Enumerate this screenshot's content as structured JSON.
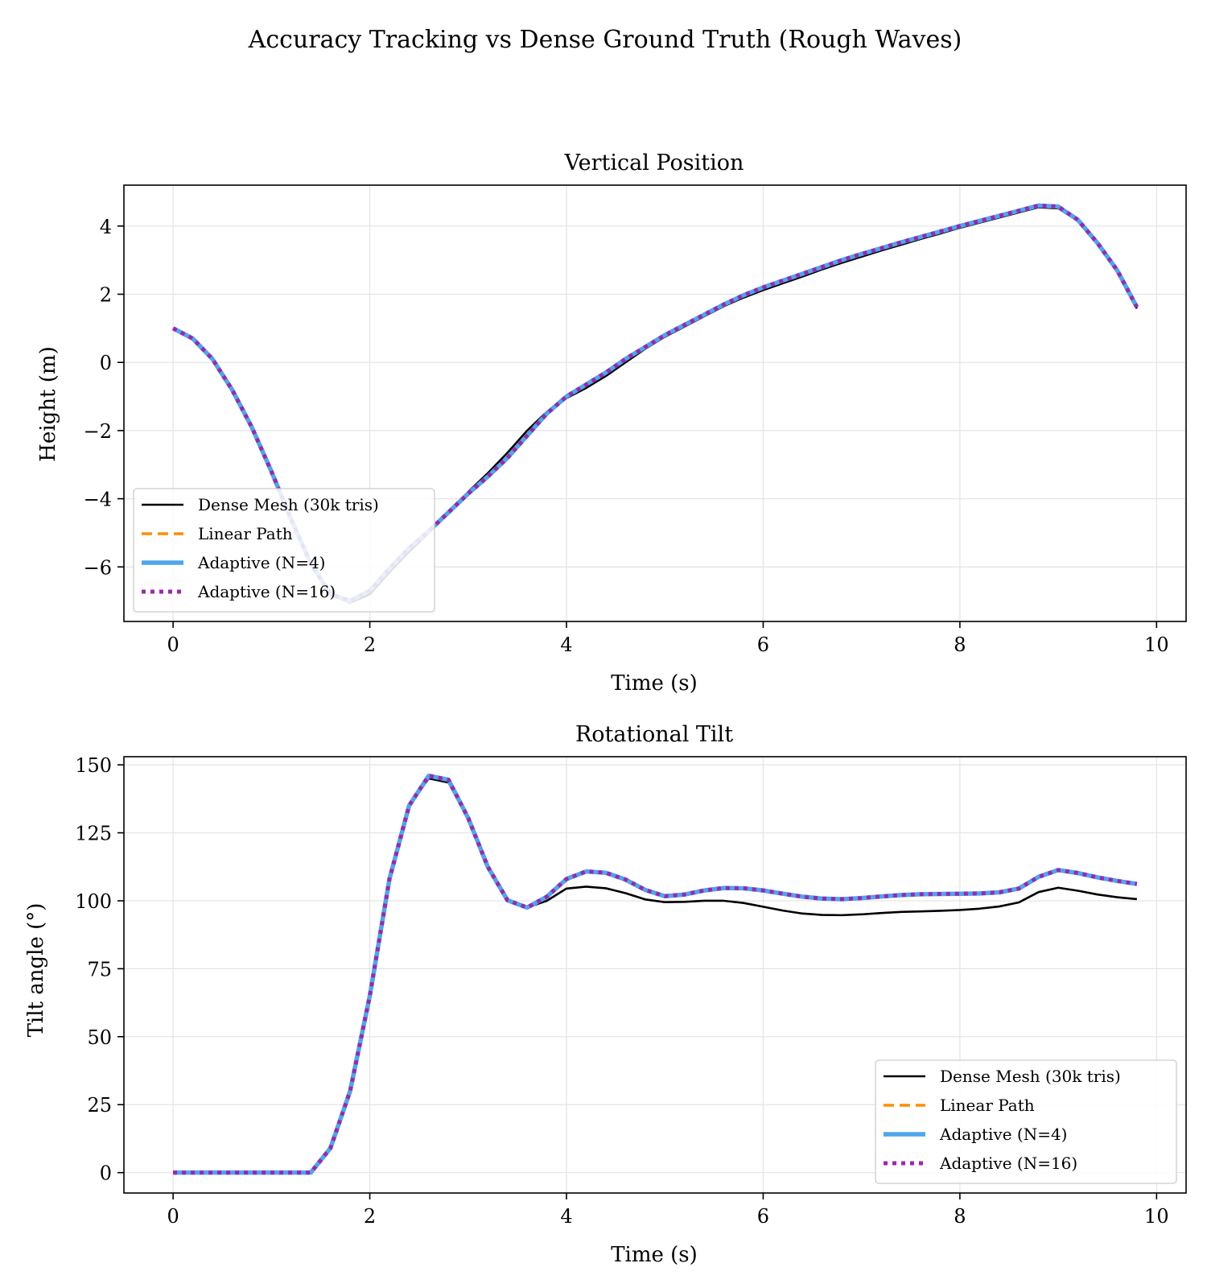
{
  "suptitle": "Accuracy Tracking vs Dense Ground Truth (Rough Waves)",
  "colors": {
    "dense": "#000000",
    "linear": "#ff8c00",
    "adaptive4": "#4da6ec",
    "adaptive16": "#9c27b0",
    "grid": "#e3e3e3"
  },
  "chart_data": [
    {
      "type": "line",
      "title": "Vertical Position",
      "xlabel": "Time (s)",
      "ylabel": "Height (m)",
      "xlim": [
        -0.5,
        10.3
      ],
      "ylim": [
        -7.6,
        5.2
      ],
      "xticks": [
        0,
        2,
        4,
        6,
        8,
        10
      ],
      "xtick_labels": [
        "0",
        "2",
        "4",
        "6",
        "8",
        "10"
      ],
      "yticks": [
        -6,
        -4,
        -2,
        0,
        2,
        4
      ],
      "ytick_labels": [
        "−6",
        "−4",
        "−2",
        "0",
        "2",
        "4"
      ],
      "grid": true,
      "legend_position": "lower-left",
      "x": [
        0,
        0.2,
        0.4,
        0.6,
        0.8,
        1.0,
        1.2,
        1.4,
        1.6,
        1.8,
        2.0,
        2.2,
        2.4,
        2.6,
        2.8,
        3.0,
        3.2,
        3.4,
        3.6,
        3.8,
        4.0,
        4.2,
        4.4,
        4.6,
        4.8,
        5.0,
        5.2,
        5.4,
        5.6,
        5.8,
        6.0,
        6.2,
        6.4,
        6.6,
        6.8,
        7.0,
        7.2,
        7.4,
        7.6,
        7.8,
        8.0,
        8.2,
        8.4,
        8.6,
        8.8,
        9.0,
        9.2,
        9.4,
        9.6,
        9.8
      ],
      "series": [
        {
          "name": "Dense Mesh (30k tris)",
          "style": "dense",
          "values": [
            1.0,
            0.7,
            0.1,
            -0.8,
            -1.9,
            -3.2,
            -4.6,
            -5.9,
            -6.8,
            -7.05,
            -6.8,
            -6.15,
            -5.55,
            -5.0,
            -4.4,
            -3.8,
            -3.25,
            -2.65,
            -2.0,
            -1.45,
            -1.05,
            -0.75,
            -0.4,
            0.0,
            0.4,
            0.75,
            1.05,
            1.35,
            1.65,
            1.9,
            2.12,
            2.32,
            2.52,
            2.73,
            2.92,
            3.1,
            3.28,
            3.45,
            3.62,
            3.78,
            3.95,
            4.1,
            4.25,
            4.4,
            4.55,
            4.52,
            4.15,
            3.5,
            2.65,
            1.58
          ]
        },
        {
          "name": "Linear Path",
          "style": "linear",
          "values": [
            1.0,
            0.7,
            0.1,
            -0.8,
            -1.9,
            -3.2,
            -4.6,
            -5.9,
            -6.8,
            -7.0,
            -6.7,
            -6.05,
            -5.45,
            -4.95,
            -4.4,
            -3.85,
            -3.35,
            -2.8,
            -2.15,
            -1.5,
            -1.0,
            -0.65,
            -0.3,
            0.1,
            0.45,
            0.8,
            1.1,
            1.4,
            1.7,
            1.97,
            2.2,
            2.4,
            2.6,
            2.8,
            3.0,
            3.18,
            3.35,
            3.52,
            3.68,
            3.84,
            4.0,
            4.15,
            4.3,
            4.45,
            4.6,
            4.57,
            4.18,
            3.5,
            2.7,
            1.62
          ]
        },
        {
          "name": "Adaptive (N=4)",
          "style": "adaptive4",
          "values": [
            1.0,
            0.7,
            0.1,
            -0.8,
            -1.9,
            -3.2,
            -4.6,
            -5.9,
            -6.8,
            -7.0,
            -6.7,
            -6.05,
            -5.45,
            -4.95,
            -4.4,
            -3.85,
            -3.35,
            -2.8,
            -2.15,
            -1.5,
            -1.0,
            -0.65,
            -0.3,
            0.1,
            0.45,
            0.8,
            1.1,
            1.4,
            1.7,
            1.97,
            2.2,
            2.4,
            2.6,
            2.8,
            3.0,
            3.18,
            3.35,
            3.52,
            3.68,
            3.84,
            4.0,
            4.15,
            4.3,
            4.45,
            4.6,
            4.57,
            4.18,
            3.5,
            2.7,
            1.62
          ]
        },
        {
          "name": "Adaptive (N=16)",
          "style": "adaptive16",
          "values": [
            1.0,
            0.7,
            0.1,
            -0.8,
            -1.9,
            -3.2,
            -4.6,
            -5.9,
            -6.8,
            -7.0,
            -6.7,
            -6.05,
            -5.45,
            -4.95,
            -4.4,
            -3.85,
            -3.35,
            -2.8,
            -2.15,
            -1.5,
            -1.0,
            -0.65,
            -0.3,
            0.1,
            0.45,
            0.8,
            1.1,
            1.4,
            1.7,
            1.97,
            2.2,
            2.4,
            2.6,
            2.8,
            3.0,
            3.18,
            3.35,
            3.52,
            3.68,
            3.84,
            4.0,
            4.15,
            4.3,
            4.45,
            4.6,
            4.57,
            4.18,
            3.5,
            2.7,
            1.62
          ]
        }
      ]
    },
    {
      "type": "line",
      "title": "Rotational Tilt",
      "xlabel": "Time (s)",
      "ylabel": "Tilt angle (°)",
      "xlim": [
        -0.5,
        10.3
      ],
      "ylim": [
        -7.5,
        153
      ],
      "xticks": [
        0,
        2,
        4,
        6,
        8,
        10
      ],
      "xtick_labels": [
        "0",
        "2",
        "4",
        "6",
        "8",
        "10"
      ],
      "yticks": [
        0,
        25,
        50,
        75,
        100,
        125,
        150
      ],
      "ytick_labels": [
        "0",
        "25",
        "50",
        "75",
        "100",
        "125",
        "150"
      ],
      "grid": true,
      "legend_position": "lower-right",
      "x": [
        0,
        0.2,
        0.4,
        0.6,
        0.8,
        1.0,
        1.2,
        1.4,
        1.6,
        1.8,
        2.0,
        2.2,
        2.4,
        2.6,
        2.8,
        3.0,
        3.2,
        3.4,
        3.6,
        3.8,
        4.0,
        4.2,
        4.4,
        4.6,
        4.8,
        5.0,
        5.2,
        5.4,
        5.6,
        5.8,
        6.0,
        6.2,
        6.4,
        6.6,
        6.8,
        7.0,
        7.2,
        7.4,
        7.6,
        7.8,
        8.0,
        8.2,
        8.4,
        8.6,
        8.8,
        9.0,
        9.2,
        9.4,
        9.6,
        9.8
      ],
      "series": [
        {
          "name": "Dense Mesh (30k tris)",
          "style": "dense",
          "values": [
            0,
            0,
            0,
            0,
            0,
            0,
            0,
            0,
            9,
            30,
            65,
            108,
            135,
            145,
            143.5,
            130,
            112,
            100,
            97.5,
            100,
            104.5,
            105.2,
            104.6,
            102.8,
            100.5,
            99.5,
            99.6,
            100,
            100,
            99.2,
            97.8,
            96.4,
            95.3,
            94.8,
            94.7,
            95,
            95.5,
            95.9,
            96.1,
            96.3,
            96.6,
            97.1,
            97.9,
            99.4,
            103.2,
            104.8,
            103.7,
            102.3,
            101.3,
            100.6
          ]
        },
        {
          "name": "Linear Path",
          "style": "linear",
          "values": [
            0,
            0,
            0,
            0,
            0,
            0,
            0,
            0,
            9,
            30,
            65,
            108,
            135,
            146,
            144.5,
            130.5,
            112.5,
            100.2,
            97.5,
            101.5,
            108,
            110.8,
            110.3,
            107.8,
            104,
            101.7,
            102.3,
            103.8,
            104.7,
            104.6,
            103.8,
            102.6,
            101.5,
            100.8,
            100.6,
            101,
            101.6,
            102.1,
            102.4,
            102.5,
            102.6,
            102.7,
            103.1,
            104.5,
            108.8,
            111.3,
            110.2,
            108.6,
            107.3,
            106.2
          ]
        },
        {
          "name": "Adaptive (N=4)",
          "style": "adaptive4",
          "values": [
            0,
            0,
            0,
            0,
            0,
            0,
            0,
            0,
            9,
            30,
            65,
            108,
            135,
            146,
            144.5,
            130.5,
            112.5,
            100.2,
            97.5,
            101.5,
            108,
            110.8,
            110.3,
            107.8,
            104,
            101.7,
            102.3,
            103.8,
            104.7,
            104.6,
            103.8,
            102.6,
            101.5,
            100.8,
            100.6,
            101,
            101.6,
            102.1,
            102.4,
            102.5,
            102.6,
            102.7,
            103.1,
            104.5,
            108.8,
            111.3,
            110.2,
            108.6,
            107.3,
            106.2
          ]
        },
        {
          "name": "Adaptive (N=16)",
          "style": "adaptive16",
          "values": [
            0,
            0,
            0,
            0,
            0,
            0,
            0,
            0,
            9,
            30,
            65,
            108,
            135,
            146,
            144.5,
            130.5,
            112.5,
            100.2,
            97.5,
            101.5,
            108,
            110.8,
            110.3,
            107.8,
            104,
            101.7,
            102.3,
            103.8,
            104.7,
            104.6,
            103.8,
            102.6,
            101.5,
            100.8,
            100.6,
            101,
            101.6,
            102.1,
            102.4,
            102.5,
            102.6,
            102.7,
            103.1,
            104.5,
            108.8,
            111.3,
            110.2,
            108.6,
            107.3,
            106.2
          ]
        }
      ]
    }
  ]
}
